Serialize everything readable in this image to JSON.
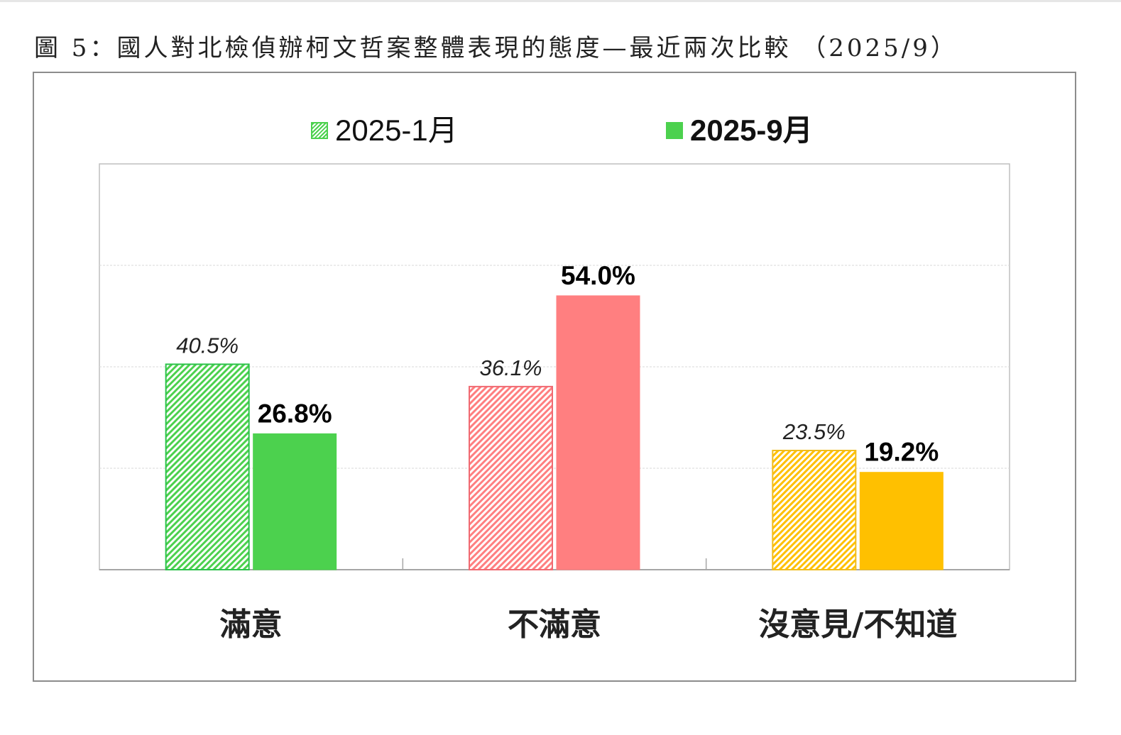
{
  "figure_title": "圖 5：國人對北檢偵辦柯文哲案整體表現的態度—最近兩次比較 （2025/9）",
  "chart_data": {
    "type": "bar",
    "categories": [
      "滿意",
      "不滿意",
      "沒意見/不知道"
    ],
    "series": [
      {
        "name": "2025-1月",
        "values": [
          40.5,
          36.1,
          23.5
        ],
        "labels": [
          "40.5%",
          "36.1%",
          "23.5%"
        ],
        "style": "hatched"
      },
      {
        "name": "2025-9月",
        "values": [
          26.8,
          54.0,
          19.2
        ],
        "labels": [
          "26.8%",
          "54.0%",
          "19.2%"
        ],
        "style": "solid"
      }
    ],
    "category_colors": {
      "滿意": {
        "solid": "#4cd14e",
        "border": "#2cc24a"
      },
      "不滿意": {
        "solid": "#ff7f80",
        "border": "#f06a72"
      },
      "沒意見/不知道": {
        "solid": "#ffc000",
        "border": "#f0bc1c"
      }
    },
    "ylim": [
      0,
      80
    ],
    "grid": true,
    "legend_position": "top"
  },
  "legend": {
    "item1": {
      "label": "2025-1月",
      "swatch_color": "#4cd14e",
      "style": "hatched"
    },
    "item2": {
      "label": "2025-9月",
      "swatch_color": "#4cd14e",
      "style": "solid"
    }
  }
}
